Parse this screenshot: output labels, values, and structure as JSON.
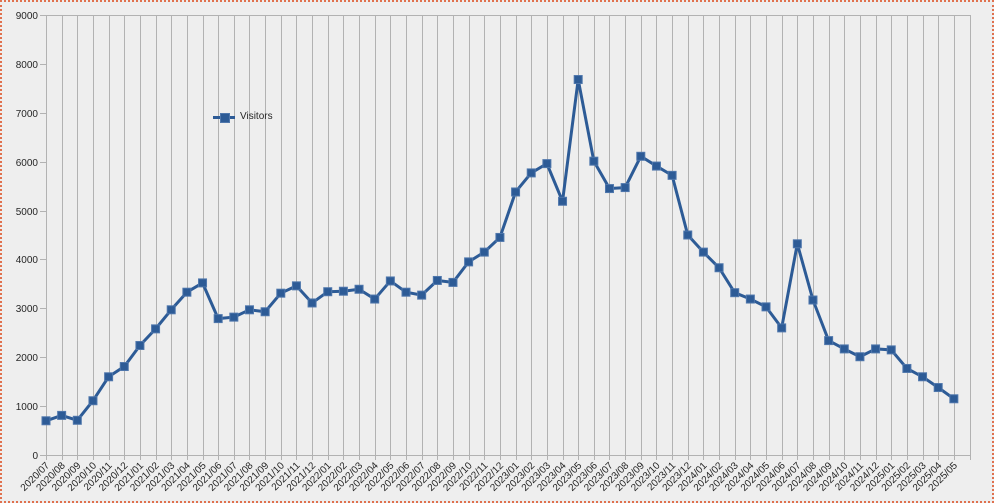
{
  "canvas": {
    "background_color": "#eeeeee",
    "border_color": "#e0714e",
    "border_style": "dotted"
  },
  "chart_data": {
    "type": "line",
    "title": "",
    "xlabel": "",
    "ylabel": "",
    "ylim": [
      0,
      9000
    ],
    "y_ticks": [
      0,
      1000,
      2000,
      3000,
      4000,
      5000,
      6000,
      7000,
      8000,
      9000
    ],
    "grid": "vertical-only",
    "marker": "square",
    "series_color": "#2d5b96",
    "grid_color": "#b2b2b2",
    "axis_color": "#b2b2b2",
    "text_color": "#262626",
    "legend": {
      "label": "Visitors",
      "position": "inside-upper-left"
    },
    "categories": [
      "2020/07",
      "2020/08",
      "2020/09",
      "2020/10",
      "2020/11",
      "2020/12",
      "2021/01",
      "2021/02",
      "2021/03",
      "2021/04",
      "2021/05",
      "2021/06",
      "2021/07",
      "2021/08",
      "2021/09",
      "2021/10",
      "2021/11",
      "2021/12",
      "2022/01",
      "2022/02",
      "2022/03",
      "2022/04",
      "2022/05",
      "2022/06",
      "2022/07",
      "2022/08",
      "2022/09",
      "2022/10",
      "2022/11",
      "2022/12",
      "2023/01",
      "2023/02",
      "2023/03",
      "2023/04",
      "2023/05",
      "2023/06",
      "2023/07",
      "2023/08",
      "2023/09",
      "2023/10",
      "2023/11",
      "2023/12",
      "2024/01",
      "2024/02",
      "2024/03",
      "2024/04",
      "2024/05",
      "2024/06",
      "2024/07",
      "2024/08",
      "2024/09",
      "2024/10",
      "2024/11",
      "2024/12",
      "2025/01",
      "2025/02",
      "2025/03",
      "2025/04",
      "2025/05"
    ],
    "series": [
      {
        "name": "Visitors",
        "values": [
          700,
          810,
          710,
          1110,
          1600,
          1810,
          2240,
          2580,
          2970,
          3330,
          3520,
          2790,
          2820,
          2970,
          2930,
          3310,
          3460,
          3110,
          3340,
          3350,
          3390,
          3190,
          3560,
          3330,
          3270,
          3570,
          3530,
          3950,
          4150,
          4450,
          5380,
          5770,
          5960,
          5190,
          7680,
          6010,
          5450,
          5470,
          6110,
          5910,
          5720,
          4500,
          4150,
          3830,
          3320,
          3190,
          3030,
          2600,
          4320,
          3170,
          2340,
          2170,
          2010,
          2170,
          2150,
          1770,
          1600,
          1380,
          1150
        ]
      }
    ]
  }
}
